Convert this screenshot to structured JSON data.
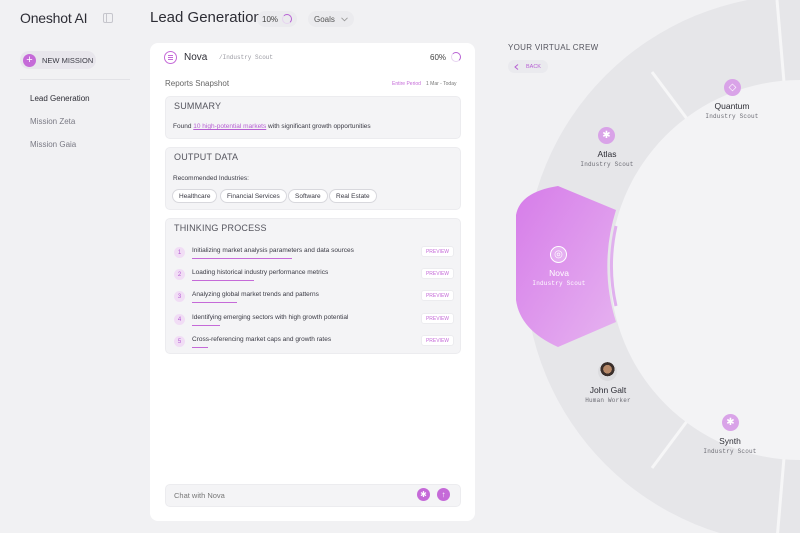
{
  "app": {
    "name": "Oneshot AI"
  },
  "header": {
    "title": "Lead Generation",
    "progress_pct": "10%",
    "progress_value": 0.1,
    "goals_label": "Goals"
  },
  "sidebar": {
    "new_mission_label": "NEW MISSION",
    "items": [
      {
        "label": "Lead Generation",
        "active": true
      },
      {
        "label": "Mission Zeta"
      },
      {
        "label": "Mission Gaia"
      }
    ]
  },
  "agent_card": {
    "name": "Nova",
    "role": "/Industry Scout",
    "progress_pct": "60%",
    "progress_value": 0.6,
    "snapshot_title": "Reports Snapshot",
    "period_label": "Entire Period",
    "period_range": "1 Mar - Today",
    "summary": {
      "heading": "SUMMARY",
      "prefix": "Found ",
      "highlight": "10 high-potential markets",
      "suffix": " with significant growth opportunities"
    },
    "output": {
      "heading": "OUTPUT DATA",
      "label": "Recommended Industries:",
      "chips": [
        "Healthcare",
        "Financial Services",
        "Software",
        "Real Estate"
      ]
    },
    "thinking": {
      "heading": "THINKING PROCESS",
      "preview_label": "PREVIEW",
      "steps": [
        {
          "num": "1",
          "text": "Initializing market analysis parameters and data sources"
        },
        {
          "num": "2",
          "text": "Loading historical industry performance metrics"
        },
        {
          "num": "3",
          "text": "Analyzing global market trends and patterns"
        },
        {
          "num": "4",
          "text": "Identifying emerging sectors with high growth potential"
        },
        {
          "num": "5",
          "text": "Cross-referencing market caps and growth rates"
        }
      ]
    },
    "chat_placeholder": "Chat with Nova"
  },
  "crew": {
    "title": "YOUR VIRTUAL CREW",
    "back_label": "BACK",
    "members": [
      {
        "name": "Quantum",
        "role": "Industry Scout"
      },
      {
        "name": "Atlas",
        "role": "Industry Scout"
      },
      {
        "name": "Nova",
        "role": "Industry Scout",
        "selected": true
      },
      {
        "name": "John Galt",
        "role": "Human Worker"
      },
      {
        "name": "Synth",
        "role": "Industry Scout"
      }
    ]
  },
  "colors": {
    "accent": "#c56ad8",
    "background": "#f1f1f3",
    "card": "#ffffff"
  }
}
